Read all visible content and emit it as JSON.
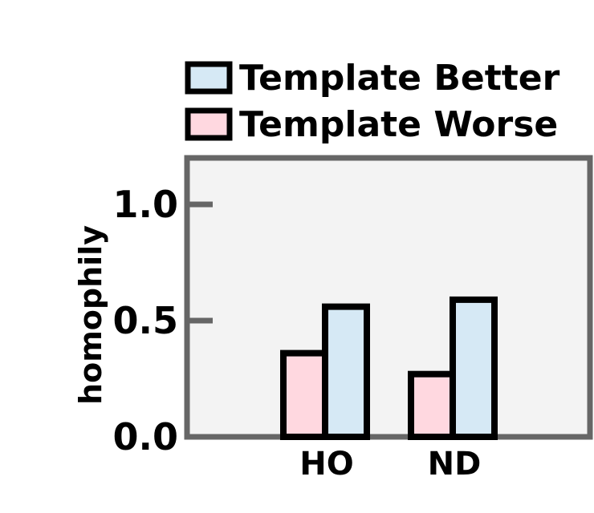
{
  "chart_data": {
    "type": "bar",
    "title": "",
    "xlabel": "",
    "ylabel": "homophily",
    "categories": [
      "HO",
      "ND"
    ],
    "series": [
      {
        "name": "Template Worse",
        "values": [
          0.36,
          0.27
        ],
        "color": "#ffd8e0"
      },
      {
        "name": "Template Better",
        "values": [
          0.56,
          0.59
        ],
        "color": "#d6e9f5"
      }
    ],
    "ylim": [
      0,
      1.2
    ],
    "yticks": [
      0.0,
      0.5,
      1.0
    ],
    "ytick_labels": [
      "0.0",
      "0.5",
      "1.0"
    ],
    "grid": false,
    "legend_position": "top (above plot)",
    "legend_order": [
      "Template Better",
      "Template Worse"
    ],
    "plot_background": "#f3f3f3",
    "axes_color": "#666666",
    "bar_edge_color": "#000000"
  }
}
